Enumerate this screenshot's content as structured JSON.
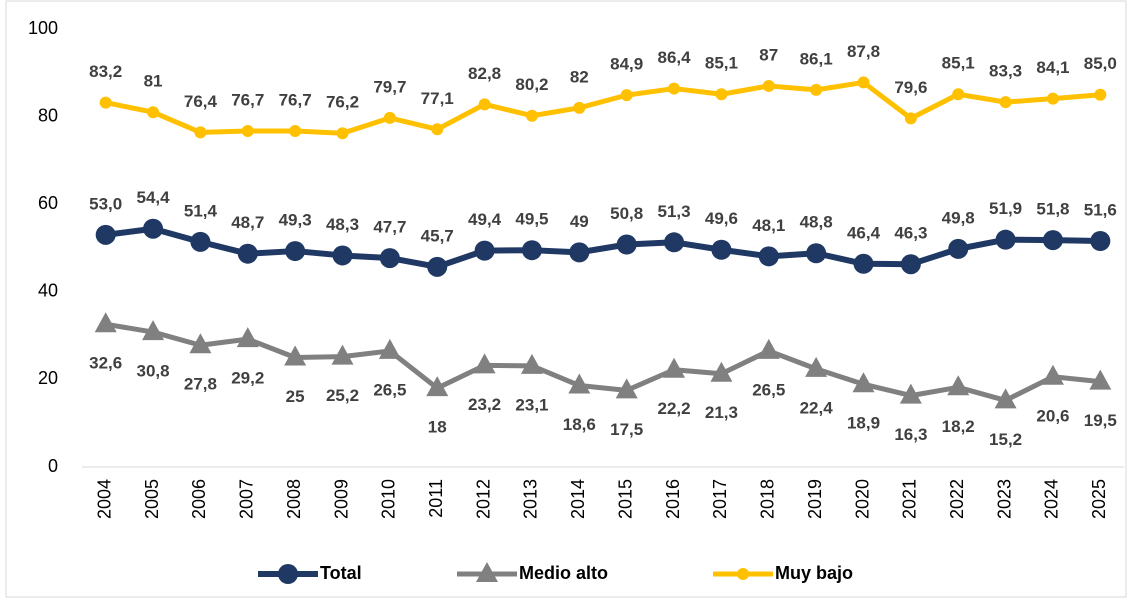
{
  "chart_data": {
    "type": "line",
    "categories": [
      "2004",
      "2005",
      "2006",
      "2007",
      "2008",
      "2009",
      "2010",
      "2011",
      "2012",
      "2013",
      "2014",
      "2015",
      "2016",
      "2017",
      "2018",
      "2019",
      "2020",
      "2021",
      "2022",
      "2023",
      "2024",
      "2025"
    ],
    "series": [
      {
        "name": "Total",
        "color": "#1f3864",
        "marker": "circle",
        "values": [
          53.0,
          54.4,
          51.4,
          48.7,
          49.3,
          48.3,
          47.7,
          45.7,
          49.4,
          49.5,
          49,
          50.8,
          51.3,
          49.6,
          48.1,
          48.8,
          46.4,
          46.3,
          49.8,
          51.9,
          51.8,
          51.6
        ],
        "value_labels": [
          "53,0",
          "54,4",
          "51,4",
          "48,7",
          "49,3",
          "48,3",
          "47,7",
          "45,7",
          "49,4",
          "49,5",
          "49",
          "50,8",
          "51,3",
          "49,6",
          "48,1",
          "48,8",
          "46,4",
          "46,3",
          "49,8",
          "51,9",
          "51,8",
          "51,6"
        ]
      },
      {
        "name": "Medio alto",
        "color": "#808080",
        "marker": "triangle",
        "values": [
          32.6,
          30.8,
          27.8,
          29.2,
          25,
          25.2,
          26.5,
          18,
          23.2,
          23.1,
          18.6,
          17.5,
          22.2,
          21.3,
          26.5,
          22.4,
          18.9,
          16.3,
          18.2,
          15.2,
          20.6,
          19.5
        ],
        "value_labels": [
          "32,6",
          "30,8",
          "27,8",
          "29,2",
          "25",
          "25,2",
          "26,5",
          "18",
          "23,2",
          "23,1",
          "18,6",
          "17,5",
          "22,2",
          "21,3",
          "26,5",
          "22,4",
          "18,9",
          "16,3",
          "18,2",
          "15,2",
          "20,6",
          "19,5"
        ]
      },
      {
        "name": "Muy bajo",
        "color": "#ffc000",
        "marker": "small-circle",
        "values": [
          83.2,
          81,
          76.4,
          76.7,
          76.7,
          76.2,
          79.7,
          77.1,
          82.8,
          80.2,
          82,
          84.9,
          86.4,
          85.1,
          87,
          86.1,
          87.8,
          79.6,
          85.1,
          83.3,
          84.1,
          85.0
        ],
        "value_labels": [
          "83,2",
          "81",
          "76,4",
          "76,7",
          "76,7",
          "76,2",
          "79,7",
          "77,1",
          "82,8",
          "80,2",
          "82",
          "84,9",
          "86,4",
          "85,1",
          "87",
          "86,1",
          "87,8",
          "79,6",
          "85,1",
          "83,3",
          "84,1",
          "85,0"
        ]
      }
    ],
    "ylim": [
      0,
      100
    ],
    "yticks": [
      0,
      20,
      40,
      60,
      80,
      100
    ],
    "grid": false,
    "legend": "bottom"
  }
}
